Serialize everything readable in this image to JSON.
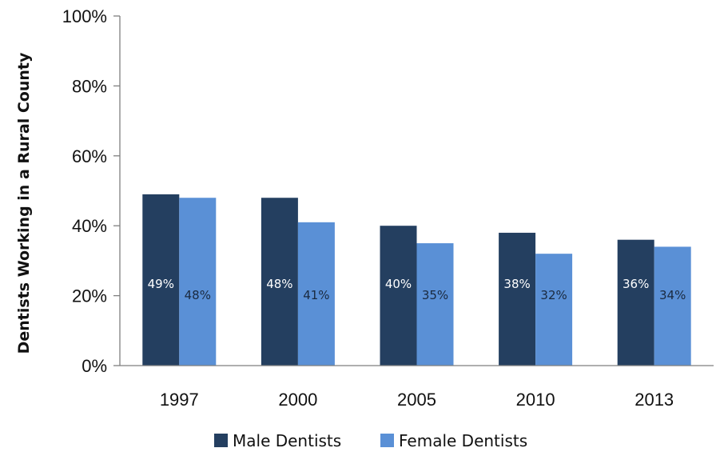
{
  "chart_data": {
    "type": "bar",
    "title": "",
    "xlabel": "",
    "ylabel": "Dentists Working in a Rural County",
    "categories": [
      "1997",
      "2000",
      "2005",
      "2010",
      "2013"
    ],
    "series": [
      {
        "name": "Male Dentists",
        "color": "#243F60",
        "label_color": "#ffffff",
        "values": [
          49,
          48,
          40,
          38,
          36
        ],
        "labels": [
          "49%",
          "48%",
          "40%",
          "38%",
          "36%"
        ]
      },
      {
        "name": "Female Dentists",
        "color": "#5A90D6",
        "label_color": "#1a2a40",
        "values": [
          48,
          41,
          35,
          32,
          34
        ],
        "labels": [
          "48%",
          "41%",
          "35%",
          "32%",
          "34%"
        ]
      }
    ],
    "ylim": [
      0,
      100
    ],
    "y_ticks": [
      0,
      20,
      40,
      60,
      80,
      100
    ],
    "y_tick_labels": [
      "0%",
      "20%",
      "40%",
      "60%",
      "80%",
      "100%"
    ],
    "grid": false,
    "legend_position": "bottom"
  }
}
